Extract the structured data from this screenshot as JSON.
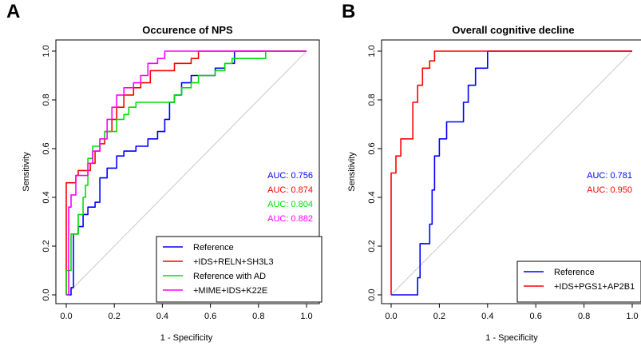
{
  "chart_data": [
    {
      "type": "line",
      "panel": "A",
      "title": "Occurence of NPS",
      "xlabel": "1 - Specificity",
      "ylabel": "Sensitivity",
      "xlim": [
        0,
        1
      ],
      "ylim": [
        0,
        1
      ],
      "xticks": [
        "0.0",
        "0.2",
        "0.4",
        "0.6",
        "0.8",
        "1.0"
      ],
      "yticks": [
        "0.0",
        "0.2",
        "0.4",
        "0.6",
        "0.8",
        "1.0"
      ],
      "grid": false,
      "legend_position": "bottom-right",
      "diagonal": true,
      "series": [
        {
          "name": "Reference",
          "color": "#0000ff",
          "auc": "AUC: 0.756",
          "points": [
            [
              0,
              0
            ],
            [
              0.02,
              0
            ],
            [
              0.02,
              0.03
            ],
            [
              0.03,
              0.03
            ],
            [
              0.03,
              0.25
            ],
            [
              0.05,
              0.25
            ],
            [
              0.05,
              0.28
            ],
            [
              0.07,
              0.28
            ],
            [
              0.07,
              0.33
            ],
            [
              0.09,
              0.33
            ],
            [
              0.09,
              0.36
            ],
            [
              0.12,
              0.36
            ],
            [
              0.12,
              0.38
            ],
            [
              0.14,
              0.38
            ],
            [
              0.14,
              0.48
            ],
            [
              0.17,
              0.48
            ],
            [
              0.17,
              0.52
            ],
            [
              0.21,
              0.52
            ],
            [
              0.21,
              0.57
            ],
            [
              0.24,
              0.57
            ],
            [
              0.24,
              0.59
            ],
            [
              0.29,
              0.59
            ],
            [
              0.29,
              0.61
            ],
            [
              0.34,
              0.61
            ],
            [
              0.34,
              0.64
            ],
            [
              0.38,
              0.64
            ],
            [
              0.38,
              0.67
            ],
            [
              0.41,
              0.67
            ],
            [
              0.41,
              0.72
            ],
            [
              0.43,
              0.72
            ],
            [
              0.43,
              0.79
            ],
            [
              0.45,
              0.79
            ],
            [
              0.45,
              0.82
            ],
            [
              0.48,
              0.82
            ],
            [
              0.48,
              0.87
            ],
            [
              0.52,
              0.87
            ],
            [
              0.52,
              0.9
            ],
            [
              0.62,
              0.9
            ],
            [
              0.62,
              0.93
            ],
            [
              0.66,
              0.93
            ],
            [
              0.66,
              0.95
            ],
            [
              0.7,
              0.95
            ],
            [
              0.7,
              1.0
            ],
            [
              1.0,
              1.0
            ]
          ]
        },
        {
          "name": "+IDS+RELN+SH3L3",
          "color": "#ff0000",
          "auc": "AUC: 0.874",
          "points": [
            [
              0,
              0
            ],
            [
              0,
              0.46
            ],
            [
              0.04,
              0.46
            ],
            [
              0.04,
              0.49
            ],
            [
              0.05,
              0.49
            ],
            [
              0.05,
              0.51
            ],
            [
              0.1,
              0.51
            ],
            [
              0.1,
              0.54
            ],
            [
              0.12,
              0.54
            ],
            [
              0.12,
              0.59
            ],
            [
              0.14,
              0.59
            ],
            [
              0.14,
              0.62
            ],
            [
              0.16,
              0.62
            ],
            [
              0.16,
              0.67
            ],
            [
              0.19,
              0.67
            ],
            [
              0.19,
              0.72
            ],
            [
              0.21,
              0.72
            ],
            [
              0.21,
              0.77
            ],
            [
              0.24,
              0.77
            ],
            [
              0.24,
              0.82
            ],
            [
              0.28,
              0.82
            ],
            [
              0.28,
              0.85
            ],
            [
              0.31,
              0.85
            ],
            [
              0.31,
              0.87
            ],
            [
              0.35,
              0.87
            ],
            [
              0.35,
              0.92
            ],
            [
              0.45,
              0.92
            ],
            [
              0.45,
              0.95
            ],
            [
              0.52,
              0.95
            ],
            [
              0.52,
              0.97
            ],
            [
              0.55,
              0.97
            ],
            [
              0.55,
              1.0
            ],
            [
              1.0,
              1.0
            ]
          ]
        },
        {
          "name": "Reference with AD",
          "color": "#00e000",
          "auc": "AUC: 0.804",
          "points": [
            [
              0,
              0
            ],
            [
              0,
              0.1
            ],
            [
              0.02,
              0.1
            ],
            [
              0.02,
              0.25
            ],
            [
              0.05,
              0.25
            ],
            [
              0.05,
              0.33
            ],
            [
              0.07,
              0.33
            ],
            [
              0.07,
              0.4
            ],
            [
              0.08,
              0.4
            ],
            [
              0.08,
              0.45
            ],
            [
              0.09,
              0.45
            ],
            [
              0.09,
              0.56
            ],
            [
              0.11,
              0.56
            ],
            [
              0.11,
              0.61
            ],
            [
              0.14,
              0.61
            ],
            [
              0.14,
              0.64
            ],
            [
              0.16,
              0.64
            ],
            [
              0.16,
              0.67
            ],
            [
              0.21,
              0.67
            ],
            [
              0.21,
              0.72
            ],
            [
              0.24,
              0.72
            ],
            [
              0.24,
              0.74
            ],
            [
              0.26,
              0.74
            ],
            [
              0.26,
              0.77
            ],
            [
              0.29,
              0.77
            ],
            [
              0.29,
              0.79
            ],
            [
              0.45,
              0.79
            ],
            [
              0.45,
              0.82
            ],
            [
              0.48,
              0.82
            ],
            [
              0.48,
              0.85
            ],
            [
              0.52,
              0.85
            ],
            [
              0.52,
              0.87
            ],
            [
              0.55,
              0.87
            ],
            [
              0.55,
              0.9
            ],
            [
              0.62,
              0.9
            ],
            [
              0.62,
              0.92
            ],
            [
              0.66,
              0.92
            ],
            [
              0.66,
              0.95
            ],
            [
              0.69,
              0.95
            ],
            [
              0.69,
              0.97
            ],
            [
              0.83,
              0.97
            ],
            [
              0.83,
              1.0
            ],
            [
              1.0,
              1.0
            ]
          ]
        },
        {
          "name": "+MIME+IDS+K22E",
          "color": "#ff00ff",
          "auc": "AUC: 0.882",
          "points": [
            [
              0,
              0
            ],
            [
              0.01,
              0
            ],
            [
              0.01,
              0.36
            ],
            [
              0.02,
              0.36
            ],
            [
              0.02,
              0.41
            ],
            [
              0.04,
              0.41
            ],
            [
              0.04,
              0.49
            ],
            [
              0.09,
              0.49
            ],
            [
              0.09,
              0.54
            ],
            [
              0.11,
              0.54
            ],
            [
              0.11,
              0.59
            ],
            [
              0.14,
              0.59
            ],
            [
              0.14,
              0.64
            ],
            [
              0.17,
              0.64
            ],
            [
              0.17,
              0.72
            ],
            [
              0.19,
              0.72
            ],
            [
              0.19,
              0.77
            ],
            [
              0.21,
              0.77
            ],
            [
              0.21,
              0.82
            ],
            [
              0.24,
              0.82
            ],
            [
              0.24,
              0.85
            ],
            [
              0.28,
              0.85
            ],
            [
              0.28,
              0.87
            ],
            [
              0.31,
              0.87
            ],
            [
              0.31,
              0.9
            ],
            [
              0.34,
              0.9
            ],
            [
              0.34,
              0.95
            ],
            [
              0.38,
              0.95
            ],
            [
              0.38,
              0.97
            ],
            [
              0.41,
              0.97
            ],
            [
              0.41,
              1.0
            ],
            [
              1.0,
              1.0
            ]
          ]
        }
      ]
    },
    {
      "type": "line",
      "panel": "B",
      "title": "Overall cognitive decline",
      "xlabel": "1 - Specificity",
      "ylabel": "Sensitivity",
      "xlim": [
        0,
        1
      ],
      "ylim": [
        0,
        1
      ],
      "xticks": [
        "0.0",
        "0.2",
        "0.4",
        "0.6",
        "0.8",
        "1.0"
      ],
      "yticks": [
        "0.0",
        "0.2",
        "0.4",
        "0.6",
        "0.8",
        "1.0"
      ],
      "grid": false,
      "legend_position": "bottom-right",
      "diagonal": true,
      "series": [
        {
          "name": "Reference",
          "color": "#0000ff",
          "auc": "AUC: 0.781",
          "points": [
            [
              0,
              0
            ],
            [
              0.11,
              0
            ],
            [
              0.11,
              0.07
            ],
            [
              0.12,
              0.07
            ],
            [
              0.12,
              0.21
            ],
            [
              0.16,
              0.21
            ],
            [
              0.16,
              0.29
            ],
            [
              0.17,
              0.29
            ],
            [
              0.17,
              0.43
            ],
            [
              0.18,
              0.43
            ],
            [
              0.18,
              0.57
            ],
            [
              0.2,
              0.57
            ],
            [
              0.2,
              0.64
            ],
            [
              0.23,
              0.64
            ],
            [
              0.23,
              0.71
            ],
            [
              0.3,
              0.71
            ],
            [
              0.3,
              0.79
            ],
            [
              0.32,
              0.79
            ],
            [
              0.32,
              0.86
            ],
            [
              0.35,
              0.86
            ],
            [
              0.35,
              0.93
            ],
            [
              0.4,
              0.93
            ],
            [
              0.4,
              1.0
            ],
            [
              1.0,
              1.0
            ]
          ]
        },
        {
          "name": "+IDS+PGS1+AP2B1",
          "color": "#ff0000",
          "auc": "AUC: 0.950",
          "points": [
            [
              0,
              0
            ],
            [
              0,
              0.5
            ],
            [
              0.02,
              0.5
            ],
            [
              0.02,
              0.57
            ],
            [
              0.04,
              0.57
            ],
            [
              0.04,
              0.64
            ],
            [
              0.09,
              0.64
            ],
            [
              0.09,
              0.79
            ],
            [
              0.11,
              0.79
            ],
            [
              0.11,
              0.86
            ],
            [
              0.13,
              0.86
            ],
            [
              0.13,
              0.93
            ],
            [
              0.16,
              0.93
            ],
            [
              0.16,
              0.96
            ],
            [
              0.18,
              0.96
            ],
            [
              0.18,
              1.0
            ],
            [
              1.0,
              1.0
            ]
          ]
        }
      ]
    }
  ]
}
